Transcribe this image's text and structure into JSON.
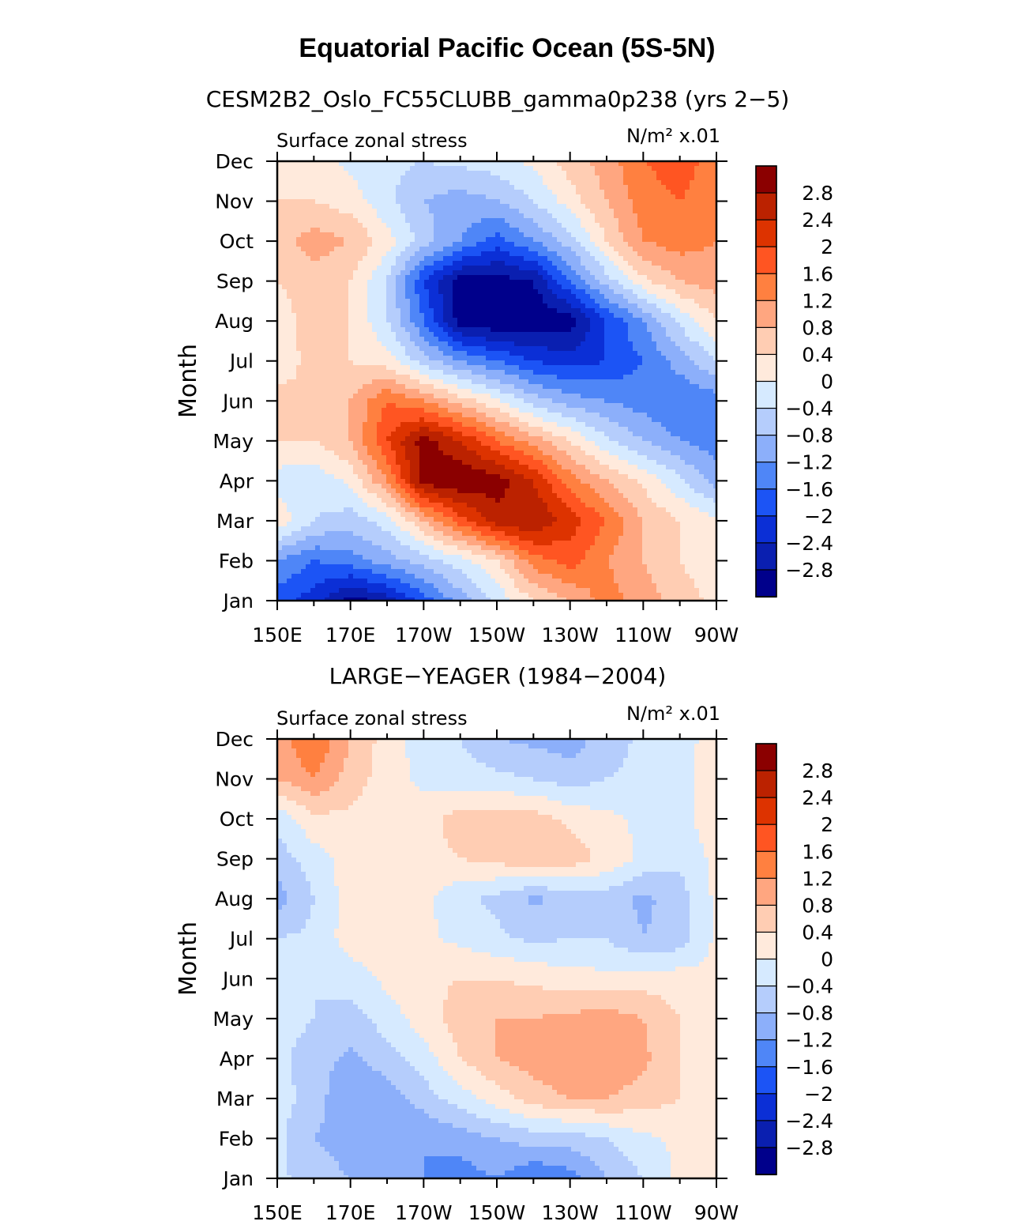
{
  "figure": {
    "title": "Equatorial Pacific Ocean (5S-5N)"
  },
  "colorbar": {
    "levels": [
      "2.8",
      "2.4",
      "2",
      "1.6",
      "1.2",
      "0.8",
      "0.4",
      "0",
      "−0.4",
      "−0.8",
      "−1.2",
      "−1.6",
      "−2",
      "−2.4",
      "−2.8"
    ],
    "colors": [
      "#8b0000",
      "#bb2200",
      "#dd3300",
      "#ff5522",
      "#ff8040",
      "#ffa680",
      "#ffcdb3",
      "#ffeadc",
      "#d6eaff",
      "#b5cdfc",
      "#8caffa",
      "#4f86f7",
      "#1c54f5",
      "#0b2fd6",
      "#0a1fb0",
      "#00008b"
    ]
  },
  "chart_data": [
    {
      "type": "heatmap",
      "title": "CESM2B2_Oslo_FC55CLUBB_gamma0p238 (yrs 2−5)",
      "left_label": "Surface zonal stress",
      "units": "N/m² x.01",
      "xlabel": "",
      "ylabel": "Month",
      "x_tick_labels": [
        "150E",
        "170E",
        "170W",
        "150W",
        "130W",
        "110W",
        "90W"
      ],
      "y_tick_labels": [
        "Jan",
        "Feb",
        "Mar",
        "Apr",
        "May",
        "Jun",
        "Jul",
        "Aug",
        "Sep",
        "Oct",
        "Nov",
        "Dec"
      ],
      "x_range": [
        150,
        270
      ],
      "y_range": [
        1,
        12
      ],
      "columns_lon": [
        150,
        160,
        170,
        180,
        190,
        200,
        210,
        220,
        230,
        240,
        250,
        260,
        270
      ],
      "rows_month": [
        1,
        2,
        3,
        4,
        5,
        6,
        7,
        8,
        9,
        10,
        11,
        12
      ],
      "values": [
        [
          -1.8,
          -2.2,
          -3.0,
          -2.6,
          -1.8,
          -1.0,
          -0.3,
          0.4,
          0.8,
          1.4,
          1.0,
          0.6,
          0.3
        ],
        [
          -1.2,
          -1.6,
          -1.4,
          -1.0,
          -0.6,
          -0.2,
          0.4,
          1.4,
          1.8,
          1.2,
          0.8,
          0.4,
          0.1
        ],
        [
          0.3,
          -0.4,
          -0.6,
          -0.2,
          0.8,
          1.8,
          2.6,
          2.8,
          2.2,
          1.6,
          0.8,
          0.4,
          0.1
        ],
        [
          -0.2,
          -0.3,
          0.1,
          1.2,
          3.0,
          3.2,
          3.0,
          2.4,
          1.4,
          0.8,
          0.3,
          -0.3,
          -1.0
        ],
        [
          0.4,
          0.4,
          0.8,
          2.0,
          3.0,
          2.4,
          1.6,
          1.0,
          0.4,
          -0.3,
          -0.8,
          -1.2,
          -1.4
        ],
        [
          0.6,
          0.4,
          0.8,
          1.6,
          1.2,
          0.6,
          0.1,
          -0.6,
          -1.0,
          -1.2,
          -1.4,
          -1.6,
          -1.4
        ],
        [
          0.1,
          0.6,
          0.4,
          0.2,
          -0.6,
          -1.2,
          -1.6,
          -2.0,
          -2.2,
          -2.0,
          -1.6,
          -1.0,
          -0.4
        ],
        [
          0.2,
          0.6,
          0.4,
          -0.4,
          -1.6,
          -3.0,
          -3.2,
          -3.2,
          -3.0,
          -2.0,
          -1.2,
          -0.3,
          0.4
        ],
        [
          0.4,
          0.6,
          0.4,
          -0.4,
          -2.0,
          -3.0,
          -3.0,
          -2.8,
          -1.6,
          -0.6,
          0.3,
          0.8,
          1.0
        ],
        [
          0.6,
          1.0,
          0.8,
          0.2,
          -0.6,
          -1.2,
          -1.8,
          -1.2,
          -0.6,
          0.4,
          1.2,
          1.4,
          1.2
        ],
        [
          0.4,
          0.4,
          0.2,
          -0.3,
          -0.8,
          -1.0,
          -0.8,
          -0.4,
          0.2,
          0.8,
          1.4,
          1.6,
          1.4
        ],
        [
          0.4,
          0.2,
          -0.1,
          -0.3,
          -0.4,
          -0.3,
          -0.2,
          0.1,
          0.6,
          1.0,
          1.6,
          1.8,
          1.4
        ]
      ]
    },
    {
      "type": "heatmap",
      "title": "LARGE−YEAGER (1984−2004)",
      "left_label": "Surface zonal stress",
      "units": "N/m² x.01",
      "xlabel": "",
      "ylabel": "Month",
      "x_tick_labels": [
        "150E",
        "170E",
        "170W",
        "150W",
        "130W",
        "110W",
        "90W"
      ],
      "y_tick_labels": [
        "Jan",
        "Feb",
        "Mar",
        "Apr",
        "May",
        "Jun",
        "Jul",
        "Aug",
        "Sep",
        "Oct",
        "Nov",
        "Dec"
      ],
      "x_range": [
        150,
        270
      ],
      "y_range": [
        1,
        12
      ],
      "columns_lon": [
        150,
        160,
        170,
        180,
        190,
        200,
        210,
        220,
        230,
        240,
        250,
        260,
        270
      ],
      "rows_month": [
        1,
        2,
        3,
        4,
        5,
        6,
        7,
        8,
        9,
        10,
        11,
        12
      ],
      "values": [
        [
          -0.3,
          -0.6,
          -0.8,
          -1.0,
          -1.2,
          -1.4,
          -1.2,
          -1.6,
          -1.4,
          -0.8,
          -0.4,
          0.1,
          0.2
        ],
        [
          -0.3,
          -0.8,
          -1.0,
          -1.0,
          -1.2,
          -1.0,
          -0.8,
          -0.6,
          -0.6,
          -0.4,
          -0.1,
          0.1,
          0.2
        ],
        [
          -0.2,
          -0.6,
          -1.2,
          -1.0,
          -0.6,
          -0.2,
          0.2,
          0.6,
          0.8,
          0.8,
          0.6,
          0.4,
          0.3
        ],
        [
          -0.3,
          -0.6,
          -0.9,
          -0.6,
          -0.2,
          0.4,
          0.8,
          1.0,
          1.2,
          1.2,
          0.9,
          0.4,
          0.2
        ],
        [
          -0.2,
          -0.4,
          -0.6,
          -0.2,
          0.2,
          0.6,
          0.8,
          0.8,
          0.9,
          1.0,
          0.8,
          0.4,
          0.2
        ],
        [
          -0.3,
          -0.4,
          -0.2,
          0.1,
          0.3,
          0.4,
          0.4,
          0.3,
          0.2,
          0.1,
          0.2,
          0.2,
          0.1
        ],
        [
          -0.4,
          -0.3,
          0.2,
          0.2,
          0.1,
          -0.1,
          -0.3,
          -0.5,
          -0.4,
          -0.4,
          -0.8,
          -0.6,
          0.1
        ],
        [
          -1.0,
          -0.4,
          0.2,
          0.1,
          0.1,
          -0.3,
          -0.5,
          -0.9,
          -0.6,
          -0.6,
          -0.9,
          -0.6,
          0.1
        ],
        [
          -0.6,
          -0.2,
          0.2,
          0.2,
          0.3,
          0.4,
          0.5,
          0.8,
          0.6,
          0.3,
          -0.1,
          -0.3,
          0.1
        ],
        [
          -0.3,
          0.3,
          0.3,
          0.2,
          0.2,
          0.6,
          0.6,
          0.6,
          0.3,
          0.1,
          -0.1,
          -0.2,
          0.3
        ],
        [
          0.8,
          1.2,
          0.6,
          0.2,
          -0.1,
          -0.2,
          -0.3,
          -0.4,
          -0.6,
          -0.4,
          -0.3,
          -0.1,
          0.2
        ],
        [
          1.0,
          1.6,
          0.8,
          0.2,
          -0.2,
          -0.4,
          -0.8,
          -0.9,
          -1.0,
          -0.6,
          -0.3,
          -0.1,
          0.1
        ]
      ]
    }
  ]
}
